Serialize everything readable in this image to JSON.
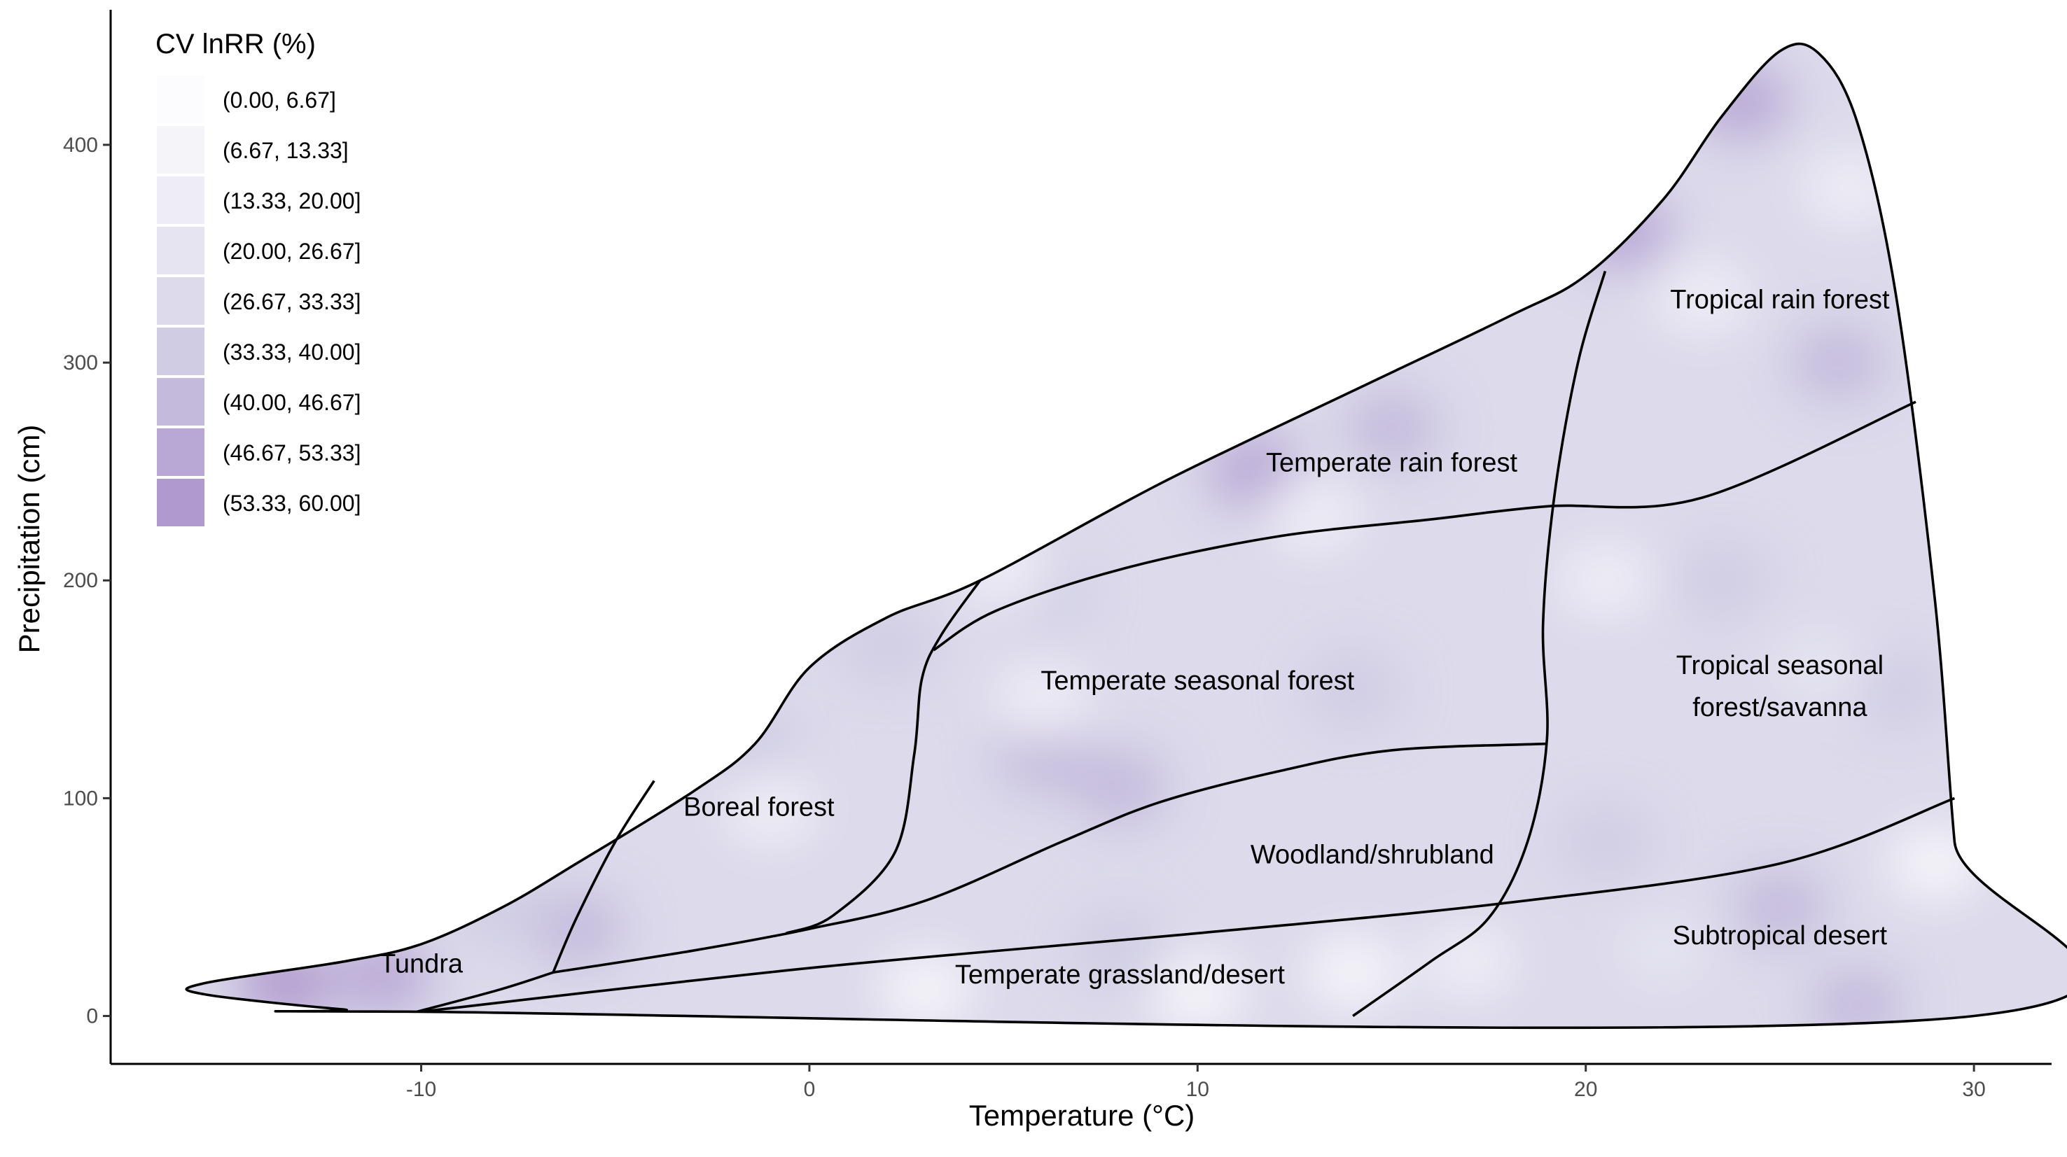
{
  "chart_data": {
    "type": "heatmap",
    "xlabel": "Temperature (°C)",
    "ylabel": "Precipitation (cm)",
    "xlim": [
      -18,
      32
    ],
    "ylim": [
      -22,
      462
    ],
    "x_ticks": [
      -10,
      0,
      10,
      20,
      30
    ],
    "y_ticks": [
      0,
      100,
      200,
      300,
      400
    ],
    "grid": false,
    "legend": {
      "title": "CV lnRR (%)",
      "position": "top-left",
      "bins": [
        {
          "label": "(0.00, 6.67]",
          "color": "#fcfbfd"
        },
        {
          "label": "(6.67, 13.33]",
          "color": "#f5f4f9"
        },
        {
          "label": "(13.33, 20.00]",
          "color": "#eeedf5"
        },
        {
          "label": "(20.00, 26.67]",
          "color": "#e5e4f0"
        },
        {
          "label": "(26.67, 33.33]",
          "color": "#dcdaeb"
        },
        {
          "label": "(33.33, 40.00]",
          "color": "#d0cce4"
        },
        {
          "label": "(40.00, 46.67]",
          "color": "#c4bbdc"
        },
        {
          "label": "(46.67, 53.33]",
          "color": "#b9a8d5"
        },
        {
          "label": "(53.33, 60.00]",
          "color": "#b09acd"
        }
      ]
    },
    "biomes": [
      {
        "name": "Tundra",
        "label": "Tundra",
        "label_at": [
          -10,
          20
        ]
      },
      {
        "name": "Boreal forest",
        "label": "Boreal forest",
        "label_at": [
          -1.3,
          92
        ]
      },
      {
        "name": "Temperate rain forest",
        "label": "Temperate rain forest",
        "label_at": [
          15,
          250
        ]
      },
      {
        "name": "Temperate seasonal forest",
        "label": "Temperate seasonal forest",
        "label_at": [
          10,
          150
        ]
      },
      {
        "name": "Woodland/shrubland",
        "label": "Woodland/shrubland",
        "label_at": [
          14.5,
          70
        ]
      },
      {
        "name": "Temperate grassland/desert",
        "label": "Temperate grassland/desert",
        "label_at": [
          8,
          15
        ]
      },
      {
        "name": "Tropical rain forest",
        "label": "Tropical rain forest",
        "label_at": [
          25,
          325
        ]
      },
      {
        "name": "Tropical seasonal forest/savanna",
        "label_lines": [
          "Tropical seasonal",
          "forest/savanna"
        ],
        "label_at": [
          25,
          157
        ]
      },
      {
        "name": "Subtropical desert",
        "label": "Subtropical desert",
        "label_at": [
          25,
          33
        ]
      }
    ],
    "outline": [
      [
        -15.6,
        10
      ],
      [
        -15.6,
        15
      ],
      [
        -12,
        25
      ],
      [
        -10,
        33
      ],
      [
        -7.9,
        50
      ],
      [
        -6,
        70
      ],
      [
        -3,
        103
      ],
      [
        -1.4,
        125
      ],
      [
        0,
        160
      ],
      [
        2,
        183
      ],
      [
        4.4,
        200
      ],
      [
        9.1,
        245
      ],
      [
        14,
        287
      ],
      [
        18,
        321
      ],
      [
        20,
        340
      ],
      [
        22,
        375
      ],
      [
        23.5,
        413
      ],
      [
        25,
        443
      ],
      [
        26,
        442
      ],
      [
        27,
        410
      ],
      [
        28,
        330
      ],
      [
        29,
        190
      ],
      [
        29.5,
        80
      ],
      [
        30,
        0
      ],
      [
        -10.4,
        2
      ],
      [
        -12,
        3
      ],
      [
        -15.6,
        10
      ]
    ],
    "boundaries": [
      {
        "from": "Tundra",
        "to": "Boreal forest",
        "points": [
          [
            -4,
            108
          ],
          [
            -5,
            80
          ],
          [
            -6,
            45
          ],
          [
            -6.6,
            20
          ]
        ]
      },
      {
        "from": "Tundra",
        "to": "Temperate grassland/desert",
        "points": [
          [
            -6.6,
            20
          ],
          [
            -8,
            12
          ],
          [
            -10.1,
            2
          ]
        ]
      },
      {
        "from": "Boreal forest",
        "to": "Temperate seasonal forest",
        "points": [
          [
            4.4,
            200
          ],
          [
            3.4,
            175
          ],
          [
            2.9,
            155
          ],
          [
            2.7,
            120
          ],
          [
            2.2,
            75
          ],
          [
            0.6,
            46
          ],
          [
            -0.6,
            38
          ]
        ]
      },
      {
        "from": "Boreal forest",
        "to": "Woodland/shrubland",
        "points": [
          [
            -6.6,
            20
          ],
          [
            -3,
            30
          ],
          [
            0,
            40
          ],
          [
            3,
            53
          ],
          [
            6.5,
            80
          ],
          [
            9,
            98
          ],
          [
            12,
            112
          ],
          [
            15,
            122
          ],
          [
            19,
            125
          ]
        ]
      },
      {
        "from": "Temperate seasonal forest",
        "to": "Temperate rain forest",
        "points": [
          [
            3.2,
            168
          ],
          [
            4.8,
            186
          ],
          [
            8,
            205
          ],
          [
            12,
            220
          ],
          [
            16,
            228
          ],
          [
            19,
            234
          ],
          [
            23,
            238
          ],
          [
            28.5,
            282
          ]
        ]
      },
      {
        "from": "Woodland/shrubland",
        "to": "Temperate grassland/desert",
        "points": [
          [
            -10,
            2
          ],
          [
            0,
            22
          ],
          [
            10,
            38
          ],
          [
            18,
            52
          ],
          [
            25,
            70
          ],
          [
            29.5,
            100
          ]
        ]
      },
      {
        "from": "Temperate zone",
        "to": "Tropical zone",
        "points": [
          [
            20.5,
            342
          ],
          [
            19.8,
            300
          ],
          [
            19.2,
            240
          ],
          [
            18.9,
            180
          ],
          [
            19,
            127
          ],
          [
            18.5,
            80
          ],
          [
            17.5,
            45
          ],
          [
            16,
            25
          ],
          [
            14,
            0
          ]
        ]
      }
    ],
    "hotspots": [
      {
        "x": -13.5,
        "y": 15,
        "bin": 8
      },
      {
        "x": -11,
        "y": 18,
        "bin": 7
      },
      {
        "x": 21,
        "y": 360,
        "bin": 7
      },
      {
        "x": 24,
        "y": 420,
        "bin": 7
      },
      {
        "x": 11.5,
        "y": 250,
        "bin": 7
      },
      {
        "x": 8,
        "y": 105,
        "bin": 6
      },
      {
        "x": 15,
        "y": 270,
        "bin": 6
      },
      {
        "x": 26.5,
        "y": 300,
        "bin": 6
      },
      {
        "x": 25,
        "y": 50,
        "bin": 6
      },
      {
        "x": 27,
        "y": 5,
        "bin": 6
      },
      {
        "x": 6,
        "y": 120,
        "bin": 6
      },
      {
        "x": -6,
        "y": 40,
        "bin": 6
      },
      {
        "x": 23.5,
        "y": 200,
        "bin": 5
      },
      {
        "x": 2,
        "y": 170,
        "bin": 5
      },
      {
        "x": -1.5,
        "y": 125,
        "bin": 5
      },
      {
        "x": 14,
        "y": 150,
        "bin": 5
      },
      {
        "x": 8,
        "y": 30,
        "bin": 5
      },
      {
        "x": 20.5,
        "y": 80,
        "bin": 5
      },
      {
        "x": 6,
        "y": 195,
        "bin": 5
      },
      {
        "x": -8,
        "y": 50,
        "bin": 5
      },
      {
        "x": 28,
        "y": 150,
        "bin": 5
      }
    ],
    "light_spots": [
      {
        "x": 10,
        "y": 10,
        "bin": 1
      },
      {
        "x": 3,
        "y": 12,
        "bin": 1
      },
      {
        "x": 14,
        "y": 20,
        "bin": 1
      },
      {
        "x": 29,
        "y": 70,
        "bin": 1
      },
      {
        "x": 6,
        "y": 145,
        "bin": 2
      },
      {
        "x": 13,
        "y": 230,
        "bin": 2
      },
      {
        "x": 20.5,
        "y": 200,
        "bin": 2
      },
      {
        "x": -1,
        "y": 95,
        "bin": 2
      },
      {
        "x": 17,
        "y": 25,
        "bin": 2
      },
      {
        "x": 23,
        "y": 330,
        "bin": 2
      },
      {
        "x": 26.8,
        "y": 380,
        "bin": 2
      },
      {
        "x": 5,
        "y": 205,
        "bin": 2
      },
      {
        "x": 26,
        "y": 160,
        "bin": 3
      },
      {
        "x": 22,
        "y": 30,
        "bin": 3
      }
    ],
    "base_bin": 4
  }
}
